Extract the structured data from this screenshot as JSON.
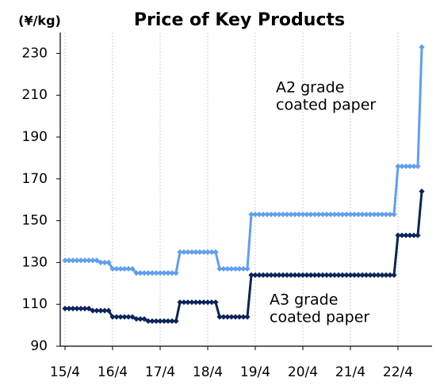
{
  "chart_data": {
    "type": "line",
    "title": "Price of Key Products",
    "y_axis_label": "(¥/kg)",
    "categories": [
      "15/4",
      null,
      null,
      null,
      null,
      null,
      null,
      null,
      null,
      null,
      null,
      null,
      "16/4",
      null,
      null,
      null,
      null,
      null,
      null,
      null,
      null,
      null,
      null,
      null,
      "17/4",
      null,
      null,
      null,
      null,
      null,
      null,
      null,
      null,
      null,
      null,
      null,
      "18/4",
      null,
      null,
      null,
      null,
      null,
      null,
      null,
      null,
      null,
      null,
      null,
      "19/4",
      null,
      null,
      null,
      null,
      null,
      null,
      null,
      null,
      null,
      null,
      null,
      "20/4",
      null,
      null,
      null,
      null,
      null,
      null,
      null,
      null,
      null,
      null,
      null,
      "21/4",
      null,
      null,
      null,
      null,
      null,
      null,
      null,
      null,
      null,
      null,
      null,
      "22/4",
      null,
      null,
      null,
      null,
      null,
      null
    ],
    "series": [
      {
        "color": "#5f9ff0",
        "values": [
          131,
          131,
          131,
          131,
          131,
          131,
          131,
          131,
          131,
          130,
          130,
          130,
          127,
          127,
          127,
          127,
          127,
          127,
          125,
          125,
          125,
          125,
          125,
          125,
          125,
          125,
          125,
          125,
          125,
          135,
          135,
          135,
          135,
          135,
          135,
          135,
          135,
          135,
          135,
          127,
          127,
          127,
          127,
          127,
          127,
          127,
          127,
          153,
          153,
          153,
          153,
          153,
          153,
          153,
          153,
          153,
          153,
          153,
          153,
          153,
          153,
          153,
          153,
          153,
          153,
          153,
          153,
          153,
          153,
          153,
          153,
          153,
          153,
          153,
          153,
          153,
          153,
          153,
          153,
          153,
          153,
          153,
          153,
          153,
          176,
          176,
          176,
          176,
          176,
          176,
          233
        ]
      },
      {
        "color": "#0c2459",
        "values": [
          108,
          108,
          108,
          108,
          108,
          108,
          108,
          107,
          107,
          107,
          107,
          107,
          104,
          104,
          104,
          104,
          104,
          104,
          103,
          103,
          103,
          102,
          102,
          102,
          102,
          102,
          102,
          102,
          102,
          111,
          111,
          111,
          111,
          111,
          111,
          111,
          111,
          111,
          111,
          104,
          104,
          104,
          104,
          104,
          104,
          104,
          104,
          124,
          124,
          124,
          124,
          124,
          124,
          124,
          124,
          124,
          124,
          124,
          124,
          124,
          124,
          124,
          124,
          124,
          124,
          124,
          124,
          124,
          124,
          124,
          124,
          124,
          124,
          124,
          124,
          124,
          124,
          124,
          124,
          124,
          124,
          124,
          124,
          124,
          143,
          143,
          143,
          143,
          143,
          143,
          164
        ]
      }
    ],
    "annotations": [
      {
        "lines": [
          "A2 grade",
          "coated paper"
        ]
      },
      {
        "lines": [
          "A3 grade",
          "coated paper"
        ]
      }
    ],
    "ylim": [
      90,
      240
    ],
    "yticks": [
      90,
      110,
      130,
      150,
      170,
      190,
      210,
      230
    ],
    "grid": true
  }
}
